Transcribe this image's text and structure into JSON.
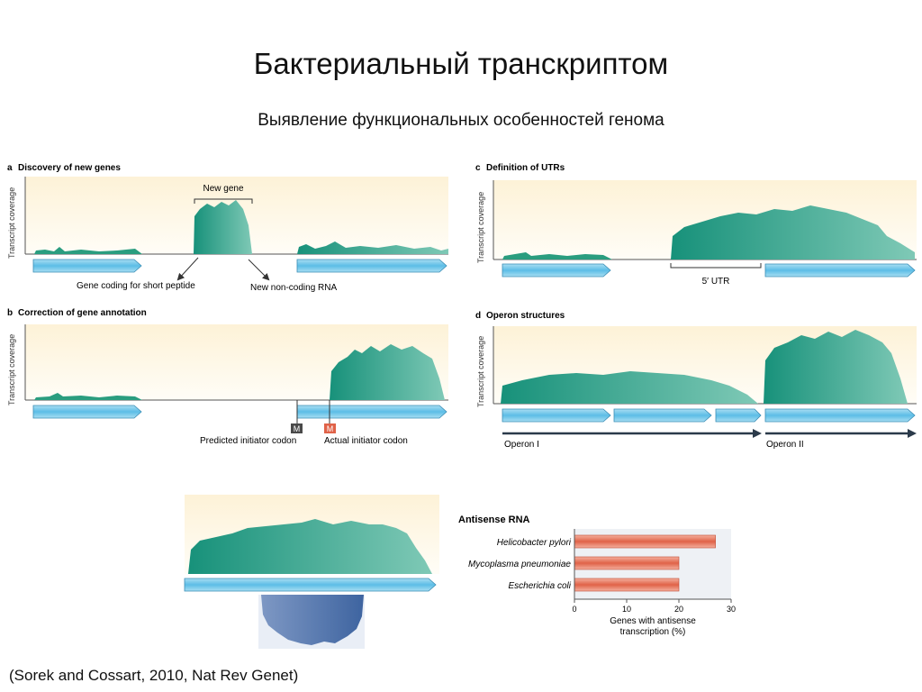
{
  "slide": {
    "title": "Бактериальный транскриптом",
    "subtitle": "Выявление функциональных особенностей генома",
    "citation": "(Sorek and Cossart, 2010, Nat Rev Genet)"
  },
  "panels": {
    "a": {
      "letter": "a",
      "title": "Discovery of new genes",
      "ylabel": "Transcript coverage",
      "new_gene_label": "New gene",
      "left_annot": "Gene coding for short peptide",
      "right_annot": "New non-coding RNA"
    },
    "b": {
      "letter": "b",
      "title": "Correction of gene annotation",
      "ylabel": "Transcript coverage",
      "predicted_codon": "Predicted initiator codon",
      "actual_codon": "Actual initiator codon",
      "codon_letter": "M"
    },
    "c": {
      "letter": "c",
      "title": "Definition of UTRs",
      "ylabel": "Transcript coverage",
      "utr_label": "5′ UTR"
    },
    "d": {
      "letter": "d",
      "title": "Operon structures",
      "ylabel": "Transcript coverage",
      "operon1": "Operon I",
      "operon2": "Operon II"
    }
  },
  "colors": {
    "coverage_fill": "#2a9d7f",
    "gene_arrow": "#7ecbea",
    "bar": "#e06248",
    "panel_bg": "#fdf2d7",
    "antisense": "#4a6fa5"
  },
  "chart_data": {
    "type": "bar",
    "title": "Antisense RNA",
    "orientation": "horizontal",
    "categories": [
      "Helicobacter pylori",
      "Mycoplasma pneumoniae",
      "Escherichia coli"
    ],
    "values": [
      27,
      20,
      20
    ],
    "xlabel": "Genes with antisense transcription (%)",
    "xlabel_lines": [
      "Genes with antisense",
      "transcription (%)"
    ],
    "xlim": [
      0,
      30
    ],
    "xticks": [
      "0",
      "10",
      "20",
      "30"
    ]
  }
}
